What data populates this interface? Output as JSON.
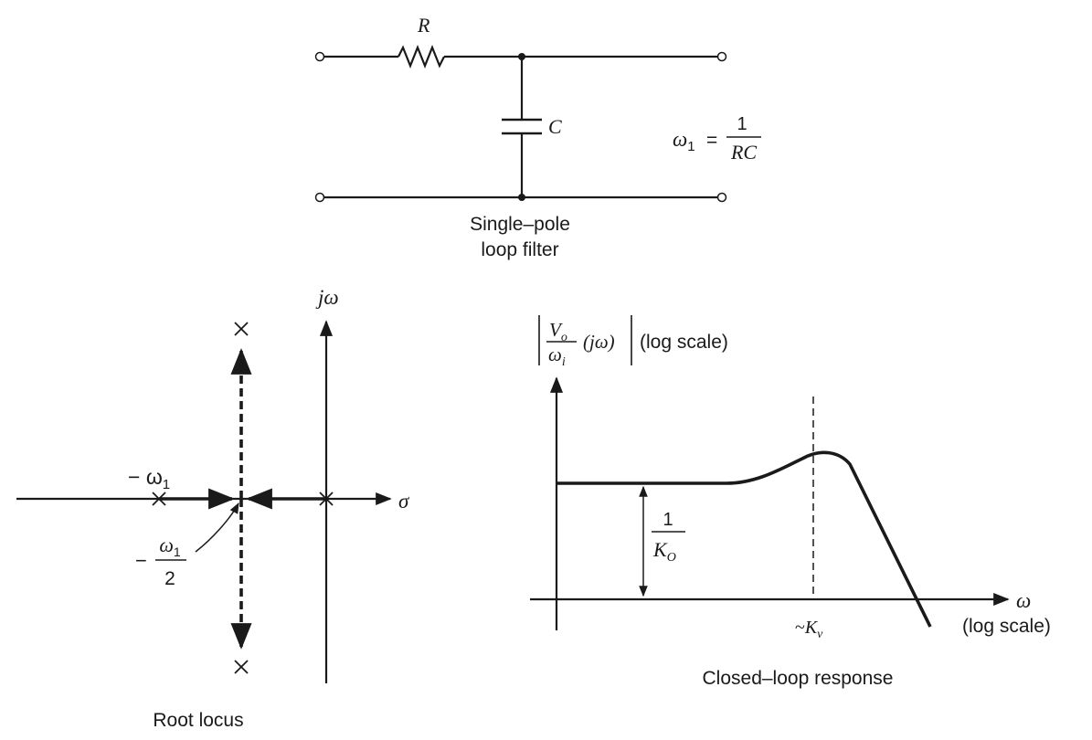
{
  "circuit": {
    "resistor_label": "R",
    "capacitor_label": "C",
    "omega_symbol": "ω",
    "omega_subscript": "1",
    "equals": "=",
    "fraction_numerator": "1",
    "fraction_denominator": "RC",
    "caption_line1": "Single–pole",
    "caption_line2": "loop filter"
  },
  "root_locus": {
    "imag_axis_label": "jω",
    "real_axis_label": "σ",
    "pole_label": "− ω",
    "pole_label_subscript": "1",
    "breakaway_minus": "−",
    "breakaway_numerator": "ω",
    "breakaway_numerator_subscript": "1",
    "breakaway_denominator": "2",
    "caption": "Root locus"
  },
  "response": {
    "y_label_num": "V",
    "y_label_num_sub": "o",
    "y_label_den": "ω",
    "y_label_den_sub": "i",
    "y_label_arg": "(jω)",
    "y_label_scale": "(log scale)",
    "x_label": "ω",
    "x_label_scale": "(log scale)",
    "gain_numerator": "1",
    "gain_denominator": "K",
    "gain_denominator_sub": "O",
    "peak_tick_prefix": "~",
    "peak_tick_var": "K",
    "peak_tick_sub": "v",
    "caption": "Closed–loop response"
  }
}
